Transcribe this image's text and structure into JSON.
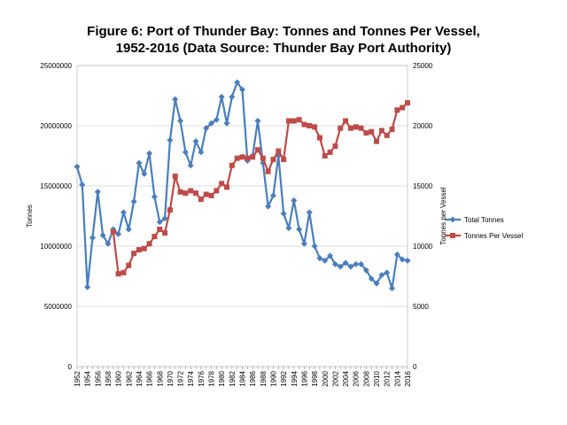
{
  "chart_data": {
    "type": "line",
    "title_line1": "Figure 6: Port of Thunder Bay: Tonnes and Tonnes Per Vessel,",
    "title_line2": "1952-2016 (Data Source: Thunder Bay Port Authority)",
    "ylabel_left": "Tonnes",
    "ylabel_right": "Tonnes per Vessel",
    "xlim": [
      1952,
      2016
    ],
    "ylim_left": [
      0,
      25000000
    ],
    "ylim_right": [
      0,
      25000
    ],
    "x_ticks": [
      "1952",
      "1954",
      "1956",
      "1958",
      "1960",
      "1962",
      "1964",
      "1966",
      "1968",
      "1970",
      "1972",
      "1974",
      "1976",
      "1978",
      "1980",
      "1982",
      "1984",
      "1986",
      "1988",
      "1990",
      "1992",
      "1994",
      "1996",
      "1998",
      "2000",
      "2002",
      "2004",
      "2006",
      "2008",
      "2010",
      "2012",
      "2014",
      "2016"
    ],
    "y_ticks_left": [
      "0",
      "5000000",
      "10000000",
      "15000000",
      "20000000",
      "25000000"
    ],
    "y_ticks_right": [
      "0",
      "5000",
      "10000",
      "15000",
      "20000",
      "25000"
    ],
    "grid": "horizontal",
    "legend_position": "right",
    "series": [
      {
        "name": "Total Tonnes",
        "axis": "left",
        "color": "#4a7ebb",
        "marker": "diamond",
        "x": [
          1952,
          1953,
          1954,
          1955,
          1956,
          1957,
          1958,
          1959,
          1960,
          1961,
          1962,
          1963,
          1964,
          1965,
          1966,
          1967,
          1968,
          1969,
          1970,
          1971,
          1972,
          1973,
          1974,
          1975,
          1976,
          1977,
          1978,
          1979,
          1980,
          1981,
          1982,
          1983,
          1984,
          1985,
          1986,
          1987,
          1988,
          1989,
          1990,
          1991,
          1992,
          1993,
          1994,
          1995,
          1996,
          1997,
          1998,
          1999,
          2000,
          2001,
          2002,
          2003,
          2004,
          2005,
          2006,
          2007,
          2008,
          2009,
          2010,
          2011,
          2012,
          2013,
          2014,
          2015,
          2016
        ],
        "values": [
          16600000,
          15100000,
          6600000,
          10700000,
          14500000,
          10900000,
          10200000,
          11400000,
          11000000,
          12800000,
          11400000,
          13700000,
          16900000,
          16000000,
          17700000,
          14100000,
          12000000,
          12300000,
          18800000,
          22200000,
          20400000,
          17800000,
          16700000,
          18700000,
          17800000,
          19800000,
          20200000,
          20500000,
          22400000,
          20200000,
          22400000,
          23600000,
          23000000,
          17100000,
          17500000,
          20400000,
          16900000,
          13300000,
          14200000,
          17500000,
          12700000,
          11500000,
          13800000,
          11400000,
          10200000,
          12800000,
          10000000,
          9000000,
          8800000,
          9200000,
          8500000,
          8300000,
          8600000,
          8300000,
          8500000,
          8500000,
          8000000,
          7300000,
          6900000,
          7600000,
          7800000,
          6500000,
          9300000,
          8900000,
          8800000
        ]
      },
      {
        "name": "Tonnes Per Vessel",
        "axis": "right",
        "color": "#be4b48",
        "marker": "square",
        "x": [
          1959,
          1960,
          1961,
          1962,
          1963,
          1964,
          1965,
          1966,
          1967,
          1968,
          1969,
          1970,
          1971,
          1972,
          1973,
          1974,
          1975,
          1976,
          1977,
          1978,
          1979,
          1980,
          1981,
          1982,
          1983,
          1984,
          1985,
          1986,
          1987,
          1988,
          1989,
          1990,
          1991,
          1992,
          1993,
          1994,
          1995,
          1996,
          1997,
          1998,
          1999,
          2000,
          2001,
          2002,
          2003,
          2004,
          2005,
          2006,
          2007,
          2008,
          2009,
          2010,
          2011,
          2012,
          2013,
          2014,
          2015,
          2016
        ],
        "values": [
          11200,
          7700,
          7800,
          8400,
          9400,
          9700,
          9800,
          10200,
          10800,
          11400,
          11100,
          13000,
          15800,
          14500,
          14400,
          14600,
          14400,
          13900,
          14300,
          14200,
          14600,
          15200,
          14900,
          16700,
          17300,
          17400,
          17300,
          17400,
          18000,
          17300,
          16200,
          17200,
          17900,
          17200,
          20400,
          20400,
          20500,
          20100,
          20000,
          19900,
          19000,
          17500,
          17800,
          18300,
          19800,
          20400,
          19800,
          19900,
          19800,
          19400,
          19500,
          18700,
          19600,
          19200,
          19700,
          21300,
          21500,
          21900
        ]
      }
    ]
  }
}
